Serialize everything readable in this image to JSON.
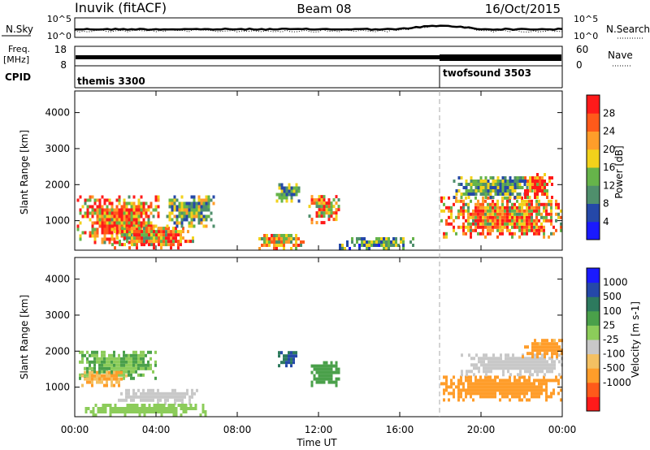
{
  "header": {
    "station": "Inuvik (fitACF)",
    "beam": "Beam 08",
    "date": "16/Oct/2015"
  },
  "strips": {
    "nsky_label": "N.Sky",
    "nsearch_label": "N.Search",
    "noise_ticks": [
      "10^5",
      "10^0"
    ],
    "freq_label_1": "Freq.",
    "freq_label_2": "[MHz]",
    "freq_ticks": [
      "18",
      "8"
    ],
    "nave_label": "Nave",
    "nave_ticks": [
      "60",
      "0"
    ],
    "cpid_label": "CPID"
  },
  "cpid_segments": [
    {
      "name": "themis 3300",
      "start_hour": 0
    },
    {
      "name": "twofsound 3503",
      "start_hour": 18
    }
  ],
  "colors": {
    "power_scale": [
      "#1a1aff",
      "#2548a8",
      "#4f8f6c",
      "#66b44a",
      "#f2d21b",
      "#ff9d2a",
      "#ff5a1a",
      "#ff1a1a"
    ],
    "velocity_scale": [
      "#ff1a1a",
      "#ff5a1a",
      "#ff9d2a",
      "#f3c062",
      "#c8c8c8",
      "#8ccc5a",
      "#4aa04a",
      "#2d7a5e",
      "#2548a8",
      "#1a1aff"
    ]
  },
  "chart_data": [
    {
      "type": "heatmap",
      "name": "power",
      "xlabel": "Time UT",
      "ylabel": "Slant Range [km]",
      "x_ticks": [
        "00:00",
        "04:00",
        "08:00",
        "12:00",
        "16:00",
        "20:00",
        "00:00"
      ],
      "xlim_hours": [
        0,
        24
      ],
      "ylim": [
        180,
        4600
      ],
      "y_ticks": [
        1000,
        2000,
        3000,
        4000
      ],
      "colorbar": {
        "label": "Power [dB]",
        "ticks": [
          4,
          8,
          12,
          16,
          20,
          24,
          28
        ],
        "range": [
          0,
          32
        ]
      },
      "regions": [
        {
          "t0": 0.1,
          "t1": 4.2,
          "r0": 350,
          "r1": 1650,
          "v": 24
        },
        {
          "t0": 1.8,
          "t1": 5.8,
          "r0": 200,
          "r1": 800,
          "v": 22
        },
        {
          "t0": 4.5,
          "t1": 6.8,
          "r0": 800,
          "r1": 1700,
          "v": 14
        },
        {
          "t0": 8.8,
          "t1": 11.4,
          "r0": 180,
          "r1": 600,
          "v": 20
        },
        {
          "t0": 9.9,
          "t1": 11.0,
          "r0": 1500,
          "r1": 2000,
          "v": 12
        },
        {
          "t0": 11.5,
          "t1": 13.0,
          "r0": 900,
          "r1": 1700,
          "v": 22
        },
        {
          "t0": 13.0,
          "t1": 16.8,
          "r0": 180,
          "r1": 500,
          "v": 10
        },
        {
          "t0": 18.0,
          "t1": 24.0,
          "r0": 500,
          "r1": 1600,
          "v": 22
        },
        {
          "t0": 18.5,
          "t1": 22.5,
          "r0": 1600,
          "r1": 2200,
          "v": 12
        },
        {
          "t0": 22.0,
          "t1": 23.5,
          "r0": 1600,
          "r1": 2300,
          "v": 26
        }
      ]
    },
    {
      "type": "heatmap",
      "name": "velocity",
      "xlabel": "Time UT",
      "ylabel": "Slant Range [km]",
      "x_ticks": [
        "00:00",
        "04:00",
        "08:00",
        "12:00",
        "16:00",
        "20:00",
        "00:00"
      ],
      "xlim_hours": [
        0,
        24
      ],
      "ylim": [
        180,
        4600
      ],
      "y_ticks": [
        1000,
        2000,
        3000,
        4000
      ],
      "colorbar": {
        "label": "Velocity [m s-1]",
        "ticks": [
          "1000",
          "500",
          "100",
          "25",
          "-25",
          "-100",
          "-500",
          "-1000"
        ]
      },
      "regions": [
        {
          "t0": 0.2,
          "t1": 4.0,
          "r0": 1200,
          "r1": 2000,
          "v": 100
        },
        {
          "t0": 0.2,
          "t1": 2.5,
          "r0": 1000,
          "r1": 1400,
          "v": -100
        },
        {
          "t0": 2.0,
          "t1": 6.0,
          "r0": 500,
          "r1": 900,
          "v": 0
        },
        {
          "t0": 0.5,
          "t1": 6.5,
          "r0": 180,
          "r1": 500,
          "v": 60
        },
        {
          "t0": 10.0,
          "t1": 10.9,
          "r0": 1550,
          "r1": 2000,
          "v": 1000
        },
        {
          "t0": 11.5,
          "t1": 13.0,
          "r0": 1000,
          "r1": 1700,
          "v": 200
        },
        {
          "t0": 18.0,
          "t1": 24.0,
          "r0": 600,
          "r1": 1300,
          "v": -200
        },
        {
          "t0": 19.0,
          "t1": 24.0,
          "r0": 1300,
          "r1": 1900,
          "v": 0
        },
        {
          "t0": 22.0,
          "t1": 24.0,
          "r0": 1800,
          "r1": 2300,
          "v": -150
        }
      ]
    }
  ]
}
